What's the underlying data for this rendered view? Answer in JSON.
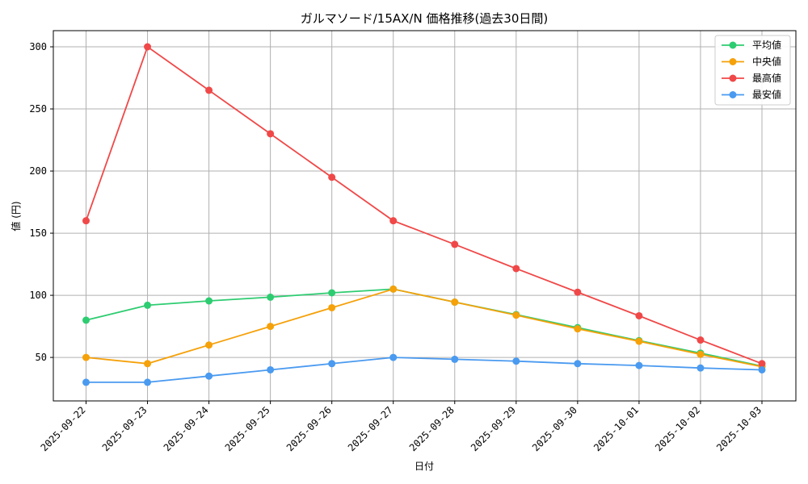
{
  "chart_data": {
    "type": "line",
    "title": "ガルマソード/15AX/N 価格推移(過去30日間)",
    "xlabel": "日付",
    "ylabel": "値 (円)",
    "categories": [
      "2025-09-22",
      "2025-09-23",
      "2025-09-24",
      "2025-09-25",
      "2025-09-26",
      "2025-09-27",
      "2025-09-28",
      "2025-09-29",
      "2025-09-30",
      "2025-10-01",
      "2025-10-02",
      "2025-10-03"
    ],
    "ylim": [
      15,
      313
    ],
    "yticks": [
      50,
      100,
      150,
      200,
      250,
      300
    ],
    "grid": true,
    "legend_position": "top-right",
    "series": [
      {
        "name": "平均値",
        "color": "#2ecc71",
        "values": [
          80,
          92,
          95.5,
          98.5,
          102,
          105,
          94.5,
          84.5,
          74,
          63.5,
          53.5,
          43
        ]
      },
      {
        "name": "中央値",
        "color": "#f5a10a",
        "values": [
          50,
          45,
          60,
          75,
          90,
          105,
          94.5,
          84,
          73,
          63,
          52.5,
          42.5
        ]
      },
      {
        "name": "最高値",
        "color": "#f04848",
        "values": [
          160,
          300,
          265,
          230,
          195,
          160,
          141,
          121.5,
          102.5,
          83.5,
          64,
          45
        ]
      },
      {
        "name": "最安値",
        "color": "#4a9af0",
        "values": [
          30,
          30,
          35,
          40,
          45,
          50,
          48.5,
          47,
          45,
          43.5,
          41.5,
          40
        ]
      }
    ]
  }
}
